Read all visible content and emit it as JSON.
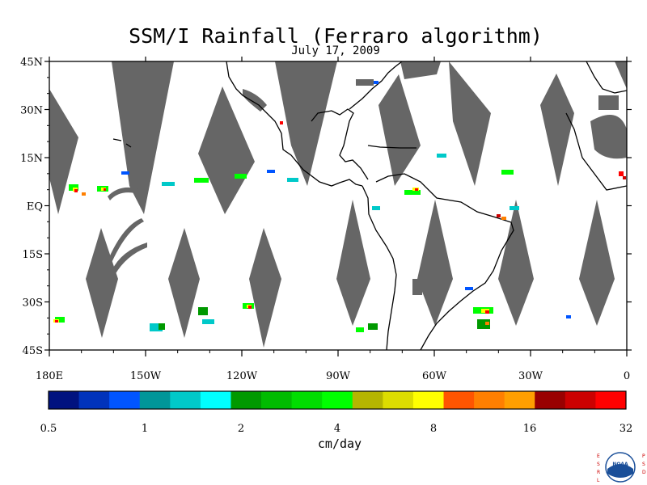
{
  "title": "SSM/I Rainfall (Ferraro algorithm)",
  "date": "July 17, 2009",
  "map": {
    "lon_range": [
      180,
      360
    ],
    "lat_range": [
      -45,
      45
    ],
    "lat_ticks": [
      {
        "value": 45,
        "label": "45N"
      },
      {
        "value": 30,
        "label": "30N"
      },
      {
        "value": 15,
        "label": "15N"
      },
      {
        "value": 0,
        "label": "EQ"
      },
      {
        "value": -15,
        "label": "15S"
      },
      {
        "value": -30,
        "label": "30S"
      },
      {
        "value": -45,
        "label": "45S"
      }
    ],
    "lon_ticks": [
      {
        "value": 180,
        "label": "180E"
      },
      {
        "value": 210,
        "label": "150W"
      },
      {
        "value": 240,
        "label": "120W"
      },
      {
        "value": 270,
        "label": "90W"
      },
      {
        "value": 300,
        "label": "60W"
      },
      {
        "value": 330,
        "label": "30W"
      },
      {
        "value": 360,
        "label": "0"
      }
    ],
    "gap_color": "#666666",
    "coast_color": "#000000"
  },
  "colorbar": {
    "unit": "cm/day",
    "colors": [
      "#00127f",
      "#0033bb",
      "#0055ff",
      "#009699",
      "#00c9c9",
      "#00ffff",
      "#009900",
      "#00bb00",
      "#00dd00",
      "#00ff00",
      "#b5b500",
      "#dddd00",
      "#ffff00",
      "#ff5500",
      "#ff7f00",
      "#ff9f00",
      "#990000",
      "#cc0000",
      "#ff0000"
    ],
    "tick_labels": [
      "0.5",
      "1",
      "2",
      "4",
      "8",
      "16",
      "32"
    ]
  },
  "logo": {
    "left_letters": "ESRL",
    "right_letters": "PSD",
    "badge_text": "NOAA"
  }
}
